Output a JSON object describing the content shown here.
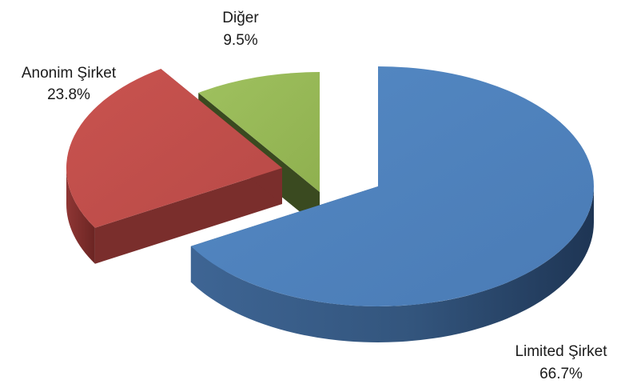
{
  "chart_data": {
    "type": "pie",
    "style": "3d-exploded",
    "title": "",
    "legend": "none",
    "slices": [
      {
        "name": "Limited Şirket",
        "value": 66.7,
        "label": "66.7%",
        "color": "#4f81bd"
      },
      {
        "name": "Anonim Şirket",
        "value": 23.8,
        "label": "23.8%",
        "color": "#c0504d"
      },
      {
        "name": "Diğer",
        "value": 9.5,
        "label": "9.5%",
        "color": "#9bbb59"
      }
    ]
  }
}
